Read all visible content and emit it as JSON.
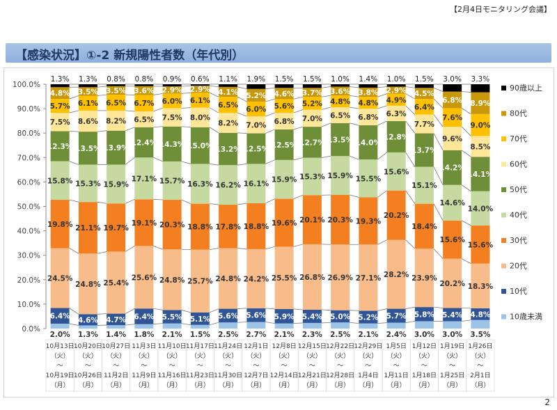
{
  "header": {
    "meeting": "【2月4日モニタリング会議】",
    "title": "【感染状況】①-2 新規陽性者数（年代別）"
  },
  "page_number": "2",
  "chart_data": {
    "type": "bar",
    "stacked": true,
    "percent": true,
    "ylim": [
      0,
      100
    ],
    "yticks": [
      "0.0%",
      "10.0%",
      "20.0%",
      "30.0%",
      "40.0%",
      "50.0%",
      "60.0%",
      "70.0%",
      "80.0%",
      "90.0%",
      "100.0%"
    ],
    "legend_position": "right",
    "categories": [
      {
        "start": "10月13日",
        "sd": "（火）",
        "tilde": "～",
        "end": "10月19日",
        "ed": "（月）"
      },
      {
        "start": "10月20日",
        "sd": "（火）",
        "tilde": "～",
        "end": "10月26日",
        "ed": "（月）"
      },
      {
        "start": "10月27日",
        "sd": "（火）",
        "tilde": "～",
        "end": "11月2日",
        "ed": "（月）"
      },
      {
        "start": "11月3日",
        "sd": "（火）",
        "tilde": "～",
        "end": "11月9日",
        "ed": "（月）"
      },
      {
        "start": "11月10日",
        "sd": "（火）",
        "tilde": "～",
        "end": "11月16日",
        "ed": "（月）"
      },
      {
        "start": "11月17日",
        "sd": "（火）",
        "tilde": "～",
        "end": "11月23日",
        "ed": "（月）"
      },
      {
        "start": "11月24日",
        "sd": "（火）",
        "tilde": "～",
        "end": "11月30日",
        "ed": "（月）"
      },
      {
        "start": "12月1日",
        "sd": "（火）",
        "tilde": "～",
        "end": "12月7日",
        "ed": "（月）"
      },
      {
        "start": "12月8日",
        "sd": "（火）",
        "tilde": "～",
        "end": "12月14日",
        "ed": "（月）"
      },
      {
        "start": "12月15日",
        "sd": "（火）",
        "tilde": "～",
        "end": "12月21日",
        "ed": "（月）"
      },
      {
        "start": "12月22日",
        "sd": "（火）",
        "tilde": "～",
        "end": "12月28日",
        "ed": "（月）"
      },
      {
        "start": "12月29日",
        "sd": "（火）",
        "tilde": "～",
        "end": "1月4日",
        "ed": "（月）"
      },
      {
        "start": "1月5日",
        "sd": "（火）",
        "tilde": "～",
        "end": "1月11日",
        "ed": "（月）"
      },
      {
        "start": "1月12日",
        "sd": "（火）",
        "tilde": "～",
        "end": "1月18日",
        "ed": "（月）"
      },
      {
        "start": "1月19日",
        "sd": "（火）",
        "tilde": "～",
        "end": "1月25日",
        "ed": "（月）"
      },
      {
        "start": "1月26日",
        "sd": "（火）",
        "tilde": "～",
        "end": "2月1日",
        "ed": "（月）"
      }
    ],
    "series": [
      {
        "name": "10歳未満",
        "color": "#9dc3e6",
        "label_color": "#333333",
        "values": [
          2.0,
          1.3,
          1.4,
          1.8,
          2.1,
          1.5,
          2.5,
          2.7,
          2.1,
          2.3,
          2.5,
          2.1,
          2.4,
          3.0,
          3.0,
          3.5
        ]
      },
      {
        "name": "10代",
        "color": "#2f5597",
        "label_color": "#ffffff",
        "values": [
          6.4,
          4.6,
          4.7,
          6.4,
          5.5,
          5.1,
          5.6,
          5.6,
          5.9,
          5.4,
          5.0,
          5.2,
          5.7,
          5.8,
          5.4,
          4.8
        ]
      },
      {
        "name": "20代",
        "color": "#f8bb8a",
        "label_color": "#333333",
        "values": [
          24.5,
          24.8,
          25.4,
          25.6,
          24.8,
          25.7,
          24.8,
          24.2,
          25.5,
          26.8,
          26.9,
          27.1,
          28.2,
          23.9,
          20.2,
          18.3
        ]
      },
      {
        "name": "30代",
        "color": "#f47f20",
        "label_color": "#333333",
        "values": [
          19.8,
          21.1,
          19.7,
          19.1,
          20.3,
          18.8,
          17.8,
          18.8,
          19.6,
          20.1,
          20.3,
          19.3,
          20.2,
          18.4,
          15.6,
          15.6
        ]
      },
      {
        "name": "40代",
        "color": "#c5d9a0",
        "label_color": "#333333",
        "values": [
          15.8,
          15.3,
          15.9,
          17.1,
          15.7,
          16.3,
          16.2,
          16.1,
          15.9,
          15.3,
          15.9,
          15.5,
          15.6,
          15.1,
          14.6,
          14.0
        ]
      },
      {
        "name": "50代",
        "color": "#6e8f38",
        "label_color": "#ffffff",
        "values": [
          12.3,
          13.5,
          13.9,
          12.4,
          14.3,
          15.0,
          13.2,
          12.5,
          12.5,
          12.7,
          13.5,
          14.0,
          12.8,
          13.7,
          14.2,
          14.1
        ]
      },
      {
        "name": "60代",
        "color": "#ffe699",
        "label_color": "#333333",
        "values": [
          7.5,
          8.6,
          8.2,
          6.5,
          7.5,
          8.0,
          8.2,
          7.0,
          6.8,
          7.0,
          6.5,
          6.8,
          6.3,
          7.7,
          9.6,
          8.5
        ]
      },
      {
        "name": "70代",
        "color": "#ffc000",
        "label_color": "#333333",
        "values": [
          5.7,
          6.1,
          6.5,
          6.7,
          6.0,
          6.1,
          6.5,
          6.0,
          5.6,
          5.2,
          4.8,
          4.8,
          4.9,
          6.4,
          7.6,
          9.0
        ]
      },
      {
        "name": "80代",
        "color": "#c9980a",
        "label_color": "#ffffff",
        "values": [
          4.8,
          3.5,
          3.5,
          3.6,
          2.9,
          2.9,
          4.1,
          5.2,
          4.6,
          3.7,
          3.6,
          3.8,
          2.9,
          4.5,
          6.8,
          8.9
        ]
      },
      {
        "name": "90歳以上",
        "color": "#000000",
        "label_color": "#333333",
        "label_above": true,
        "values": [
          1.3,
          1.3,
          0.8,
          0.8,
          0.9,
          0.6,
          1.1,
          1.9,
          1.5,
          1.5,
          1.0,
          1.4,
          1.0,
          1.5,
          3.0,
          3.3
        ]
      }
    ]
  }
}
